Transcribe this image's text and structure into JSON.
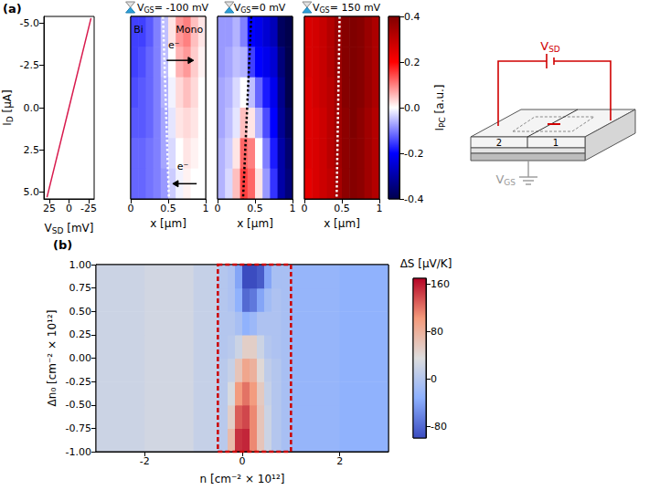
{
  "figure": {
    "panel_labels": [
      "(a)",
      "(b)"
    ]
  },
  "chart_data": [
    {
      "type": "line",
      "x_label": [
        "V",
        "SD",
        " [mV]"
      ],
      "y_label": [
        "I",
        "D",
        " [µA]"
      ],
      "x": [
        28,
        0,
        -28
      ],
      "values": [
        5.3,
        0,
        -5.3
      ],
      "color": "#d81b4e",
      "xlim": [
        32,
        -32
      ],
      "xticks": [
        25,
        0,
        -25
      ],
      "ylim": [
        5.4,
        -5.4
      ],
      "yticks": [
        {
          "value": -5,
          "label": "-5.0"
        },
        -2.5,
        {
          "value": 0,
          "label": "0.0"
        },
        2.5,
        {
          "value": 5,
          "label": "5.0"
        }
      ]
    },
    {
      "type": "heatmap",
      "title": [
        "V",
        "GS",
        "= -100 mV"
      ],
      "x_label": "x [µm]",
      "xlim": [
        0,
        1
      ],
      "xticks": [
        0,
        0.5,
        1
      ],
      "ylim": [
        5.4,
        -5.4
      ],
      "tick_labels": "x",
      "x_edges": [
        0,
        0.1,
        0.2,
        0.3,
        0.4,
        0.5,
        0.6,
        0.7,
        0.8,
        0.9,
        1
      ],
      "y_edges": [
        -5.4,
        -3.6,
        -1.8,
        0,
        1.8,
        3.6,
        5.4
      ],
      "cells": [
        [
          -0.15,
          -0.15,
          -0.13,
          -0.1,
          -0.05,
          0.02,
          0.08,
          0.1,
          0.05,
          0.02
        ],
        [
          -0.15,
          -0.14,
          -0.12,
          -0.1,
          -0.05,
          0.0,
          0.06,
          0.08,
          0.04,
          0.01
        ],
        [
          -0.14,
          -0.13,
          -0.12,
          -0.1,
          -0.06,
          -0.01,
          0.03,
          0.05,
          0.03,
          0.0
        ],
        [
          -0.13,
          -0.13,
          -0.12,
          -0.1,
          -0.07,
          -0.02,
          0.02,
          0.03,
          0.02,
          0.0
        ],
        [
          -0.12,
          -0.12,
          -0.11,
          -0.1,
          -0.07,
          -0.03,
          0.0,
          0.02,
          0.01,
          0.0
        ],
        [
          -0.12,
          -0.12,
          -0.11,
          -0.1,
          -0.08,
          -0.04,
          -0.01,
          0.01,
          0.0,
          0.0
        ]
      ],
      "boundary": {
        "x": [
          0.43,
          0.51
        ],
        "y": [
          -5.4,
          5.4
        ],
        "color": "#ffffff",
        "line_style": "dotted"
      },
      "annotations": [
        {
          "text": "Bi",
          "x": 0.04,
          "y": -4.6
        },
        {
          "text": "Mono",
          "x": 0.6,
          "y": -4.6
        },
        {
          "text": "e⁻",
          "x": 0.5,
          "y": -3.7
        },
        {
          "text": "e⁻",
          "x": 0.62,
          "y": 3.5
        }
      ],
      "arrows": [
        {
          "x": [
            0.48,
            0.84
          ],
          "y": [
            -2.8,
            -2.8
          ]
        },
        {
          "x": [
            0.88,
            0.56
          ],
          "y": [
            4.5,
            4.5
          ]
        }
      ]
    },
    {
      "type": "heatmap",
      "title": [
        "V",
        "GS",
        "=0 mV"
      ],
      "x_label": "x [µm]",
      "xlim": [
        0,
        1
      ],
      "xticks": [
        0,
        0.5,
        1
      ],
      "ylim": [
        5.4,
        -5.4
      ],
      "tick_labels": "x",
      "x_edges": [
        0,
        0.1,
        0.2,
        0.3,
        0.4,
        0.5,
        0.6,
        0.7,
        0.8,
        0.9,
        1
      ],
      "y_edges": [
        -5.4,
        -3.6,
        -1.8,
        0,
        1.8,
        3.6,
        5.4
      ],
      "cells": [
        [
          -0.08,
          -0.08,
          -0.06,
          -0.1,
          -0.2,
          -0.22,
          -0.25,
          -0.28,
          -0.38,
          -0.4
        ],
        [
          -0.08,
          -0.07,
          -0.05,
          -0.06,
          -0.15,
          -0.2,
          -0.22,
          -0.25,
          -0.35,
          -0.4
        ],
        [
          -0.07,
          -0.06,
          -0.03,
          0.0,
          -0.05,
          -0.12,
          -0.18,
          -0.22,
          -0.33,
          -0.4
        ],
        [
          -0.07,
          -0.05,
          -0.02,
          0.05,
          0.02,
          -0.06,
          -0.14,
          -0.2,
          -0.32,
          -0.38
        ],
        [
          -0.06,
          -0.04,
          0.02,
          0.12,
          0.1,
          0.0,
          -0.1,
          -0.18,
          -0.3,
          -0.36
        ],
        [
          -0.06,
          -0.03,
          0.05,
          0.15,
          0.12,
          0.02,
          -0.08,
          -0.16,
          -0.3,
          -0.35
        ]
      ],
      "boundary": {
        "x": [
          0.45,
          0.34
        ],
        "y": [
          -5.4,
          5.4
        ],
        "color": "#000000",
        "line_style": "dotted"
      }
    },
    {
      "type": "heatmap",
      "title": [
        "V",
        "GS",
        "= 150 mV"
      ],
      "x_label": "x [µm]",
      "xlim": [
        0,
        1
      ],
      "xticks": [
        0,
        0.5,
        1
      ],
      "ylim": [
        5.4,
        -5.4
      ],
      "tick_labels": "x",
      "x_edges": [
        0,
        0.1,
        0.2,
        0.3,
        0.4,
        0.5,
        0.6,
        0.7,
        0.8,
        0.9,
        1
      ],
      "y_edges": [
        -5.4,
        -3.6,
        -1.8,
        0,
        1.8,
        3.6,
        5.4
      ],
      "cells": [
        [
          0.26,
          0.27,
          0.29,
          0.32,
          0.36,
          0.39,
          0.4,
          0.39,
          0.36,
          0.33
        ],
        [
          0.26,
          0.27,
          0.29,
          0.32,
          0.36,
          0.39,
          0.4,
          0.39,
          0.36,
          0.33
        ],
        [
          0.25,
          0.27,
          0.29,
          0.31,
          0.35,
          0.39,
          0.4,
          0.39,
          0.36,
          0.33
        ],
        [
          0.25,
          0.26,
          0.28,
          0.31,
          0.35,
          0.38,
          0.4,
          0.38,
          0.35,
          0.32
        ],
        [
          0.25,
          0.26,
          0.28,
          0.31,
          0.35,
          0.38,
          0.39,
          0.38,
          0.35,
          0.32
        ],
        [
          0.24,
          0.26,
          0.28,
          0.3,
          0.34,
          0.38,
          0.39,
          0.38,
          0.35,
          0.32
        ]
      ],
      "boundary": {
        "x": [
          0.47,
          0.43
        ],
        "y": [
          -5.4,
          5.4
        ],
        "color": "#ffffff",
        "line_style": "dotted"
      }
    },
    {
      "type": "colorbar",
      "label": [
        "I",
        "PC",
        " [a.u.]"
      ],
      "range": [
        -0.4,
        0.4
      ],
      "ticks": [
        -0.4,
        -0.2,
        {
          "value": 0,
          "label": "0.0"
        },
        0.2,
        0.4
      ]
    },
    {
      "type": "heatmap",
      "x_label": "n [cm⁻² × 10¹²]",
      "y_label": "Δn₀ [cm⁻² × 10¹²]",
      "xlim": [
        -3,
        3
      ],
      "xticks": [
        -2,
        0,
        2
      ],
      "ylim": [
        -1,
        1
      ],
      "yticks": [
        {
          "value": -1,
          "label": "-1.00"
        },
        {
          "value": -0.75,
          "label": "-0.75"
        },
        {
          "value": -0.5,
          "label": "-0.50"
        },
        {
          "value": -0.25,
          "label": "-0.25"
        },
        {
          "value": 0,
          "label": "0.00"
        },
        {
          "value": 0.25,
          "label": "0.25"
        },
        {
          "value": 0.5,
          "label": "0.50"
        },
        {
          "value": 0.75,
          "label": "0.75"
        },
        {
          "value": 1,
          "label": "1.00"
        }
      ],
      "x_edges": [
        -3,
        -2,
        -1,
        -0.5,
        -0.3,
        -0.15,
        0,
        0.15,
        0.3,
        0.45,
        0.6,
        0.8,
        1,
        2,
        3
      ],
      "y_edges": [
        -1,
        -0.75,
        -0.5,
        -0.25,
        0,
        0.25,
        0.5,
        0.75,
        1
      ],
      "cells": [
        [
          20,
          25,
          15,
          5,
          70,
          150,
          155,
          110,
          60,
          20,
          0,
          -10,
          -25,
          -30
        ],
        [
          20,
          25,
          15,
          5,
          50,
          130,
          140,
          110,
          60,
          20,
          0,
          -10,
          -25,
          -30
        ],
        [
          20,
          25,
          15,
          5,
          30,
          100,
          120,
          100,
          55,
          15,
          0,
          -10,
          -25,
          -30
        ],
        [
          20,
          25,
          15,
          5,
          15,
          60,
          90,
          80,
          40,
          10,
          0,
          -10,
          -25,
          -30
        ],
        [
          20,
          25,
          15,
          0,
          5,
          20,
          50,
          50,
          20,
          0,
          -5,
          -10,
          -25,
          -30
        ],
        [
          20,
          25,
          15,
          0,
          0,
          -10,
          -30,
          -20,
          -5,
          -5,
          -5,
          -10,
          -25,
          -30
        ],
        [
          20,
          25,
          15,
          0,
          -5,
          -30,
          -80,
          -70,
          -40,
          -15,
          -5,
          -10,
          -25,
          -30
        ],
        [
          20,
          25,
          15,
          0,
          -5,
          -40,
          -110,
          -120,
          -90,
          -40,
          -10,
          -10,
          -25,
          -30
        ]
      ],
      "colorbar": {
        "label": "ΔS [µV/K]",
        "range": [
          -100,
          170
        ],
        "ticks": [
          -80,
          0,
          80,
          160
        ]
      },
      "highlight": {
        "x": [
          -0.5,
          1.0
        ],
        "y": [
          -1,
          1
        ],
        "color": "#cc0000",
        "line_style": "dashed"
      }
    }
  ],
  "schematic": {
    "source_drain": [
      "V",
      "SD"
    ],
    "gate": [
      "V",
      "GS"
    ],
    "regions": [
      "2",
      "1"
    ]
  }
}
